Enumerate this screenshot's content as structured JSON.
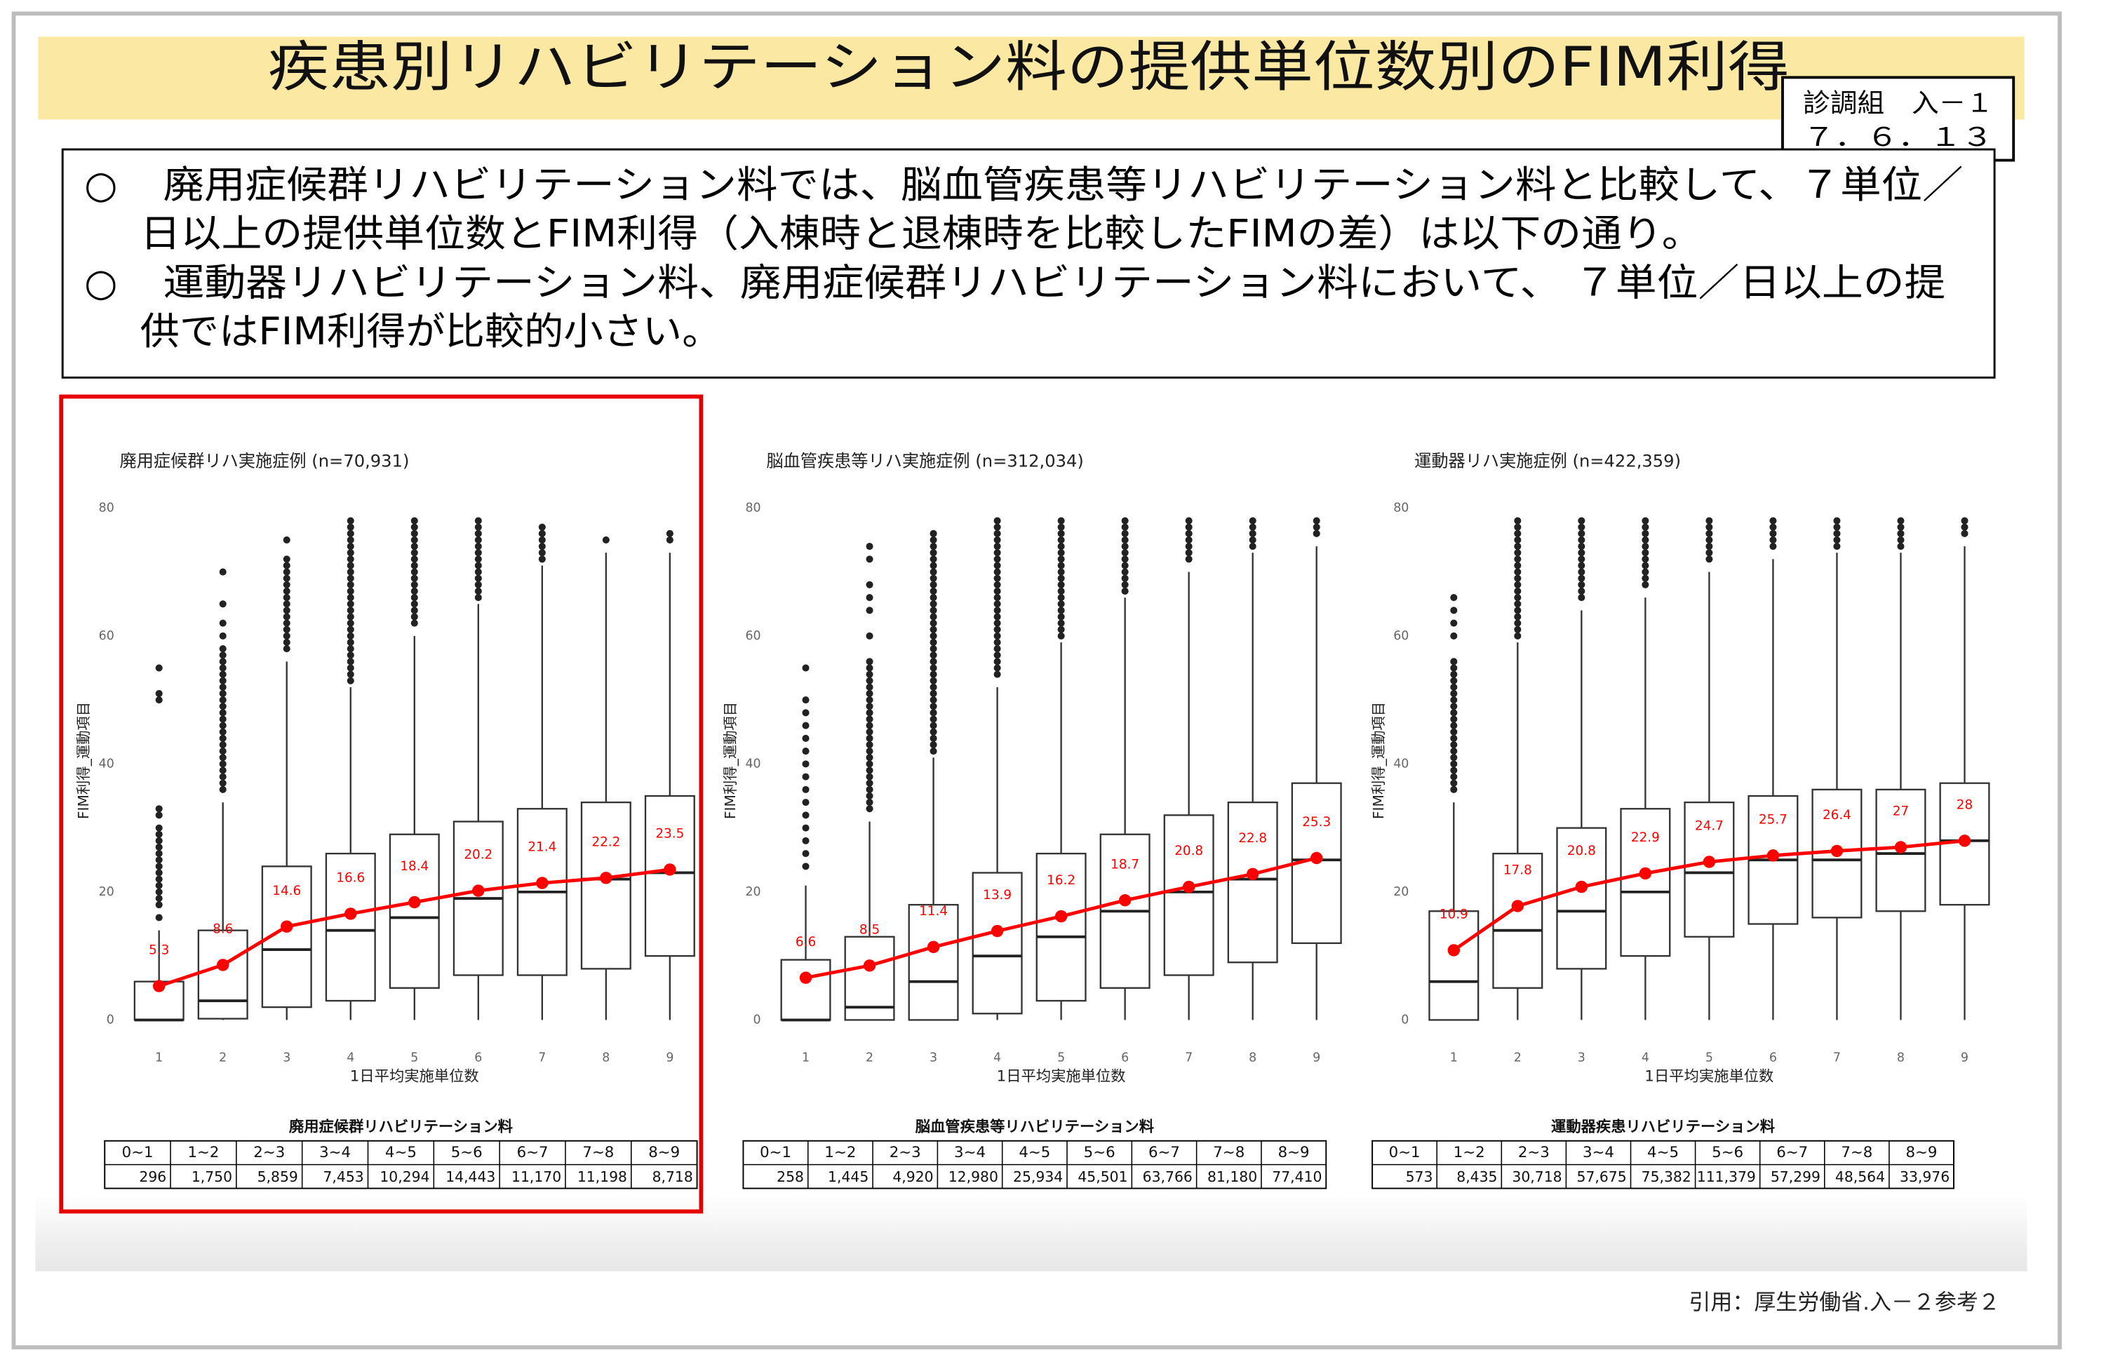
{
  "header": {
    "title": "疾患別リハビリテーション料の提供単位数別のFIM利得",
    "badge": [
      "診調組　入－１",
      "７．６．１３"
    ]
  },
  "bullets": [
    {
      "mark": "○",
      "lines": [
        "廃用症候群リハビリテーション料では、脳血管疾患等リハビリテーション料と比較して、７単位／",
        "日以上の提供単位数とFIM利得（入棟時と退棟時を比較したFIMの差）は以下の通り。"
      ]
    },
    {
      "mark": "○",
      "lines": [
        "運動器リハビリテーション料、廃用症候群リハビリテーション料において、 ７単位／日以上の提",
        "供ではFIM利得が比較的小さい。"
      ]
    }
  ],
  "chart_data": [
    {
      "type": "boxplot",
      "title": "廃用症候群リハ実施症例 (n=70,931)",
      "xlabel": "1日平均実施単位数",
      "ylabel": "FIM利得_運動項目",
      "categories": [
        "1",
        "2",
        "3",
        "4",
        "5",
        "6",
        "7",
        "8",
        "9"
      ],
      "ylim": [
        0,
        80
      ],
      "yticks": [
        0,
        20,
        40,
        60,
        80
      ],
      "box_color": "#333333",
      "mean_color": "#ff0000",
      "whisker_low": [
        0,
        0,
        0,
        0,
        0,
        0,
        0,
        0,
        0
      ],
      "q1": [
        0,
        0.2,
        2,
        3,
        5,
        7,
        7,
        8,
        10
      ],
      "median": [
        0,
        3,
        11,
        14,
        16,
        19,
        20,
        22,
        23
      ],
      "q3": [
        6,
        14,
        24,
        26,
        29,
        31,
        33,
        34,
        35
      ],
      "whisker_high": [
        14,
        34,
        56,
        52,
        60,
        65,
        71,
        73,
        73
      ],
      "outliers": [
        [
          16,
          18,
          19,
          20,
          21,
          22,
          23,
          24,
          25,
          26,
          27,
          28,
          29,
          30,
          32,
          33,
          50,
          51,
          55
        ],
        [
          36,
          37,
          38,
          39,
          40,
          41,
          42,
          43,
          44,
          45,
          46,
          47,
          48,
          49,
          50,
          51,
          52,
          53,
          54,
          55,
          56,
          57,
          58,
          60,
          62,
          65,
          70
        ],
        [
          58,
          59,
          60,
          61,
          62,
          63,
          64,
          65,
          66,
          67,
          68,
          69,
          70,
          71,
          72,
          75
        ],
        [
          53,
          54,
          55,
          56,
          57,
          58,
          59,
          60,
          61,
          62,
          63,
          64,
          65,
          66,
          67,
          68,
          69,
          70,
          71,
          72,
          73,
          74,
          75,
          76,
          77,
          78
        ],
        [
          62,
          63,
          64,
          65,
          66,
          67,
          68,
          69,
          70,
          71,
          72,
          73,
          74,
          75,
          76,
          77,
          78
        ],
        [
          66,
          67,
          68,
          69,
          70,
          71,
          72,
          73,
          74,
          75,
          76,
          77,
          78
        ],
        [
          72,
          73,
          74,
          75,
          76,
          77
        ],
        [
          75
        ],
        [
          75,
          76
        ]
      ],
      "means": [
        5.3,
        8.6,
        14.6,
        16.6,
        18.4,
        20.2,
        21.4,
        22.2,
        23.5
      ]
    },
    {
      "type": "boxplot",
      "title": "脳血管疾患等リハ実施症例 (n=312,034)",
      "xlabel": "1日平均実施単位数",
      "ylabel": "FIM利得_運動項目",
      "categories": [
        "1",
        "2",
        "3",
        "4",
        "5",
        "6",
        "7",
        "8",
        "9"
      ],
      "ylim": [
        0,
        80
      ],
      "yticks": [
        0,
        20,
        40,
        60,
        80
      ],
      "box_color": "#333333",
      "mean_color": "#ff0000",
      "whisker_low": [
        0,
        0,
        0,
        0,
        0,
        0,
        0,
        0,
        0
      ],
      "q1": [
        0,
        0,
        0,
        1,
        3,
        5,
        7,
        9,
        12
      ],
      "median": [
        0,
        2,
        6,
        10,
        13,
        17,
        20,
        22,
        25
      ],
      "q3": [
        9.4,
        13,
        18,
        23,
        26,
        29,
        32,
        34,
        37
      ],
      "whisker_high": [
        21,
        31,
        41,
        52,
        59,
        66,
        70,
        73,
        74
      ],
      "outliers": [
        [
          24,
          26,
          28,
          30,
          32,
          34,
          36,
          38,
          40,
          42,
          44,
          46,
          48,
          50,
          55
        ],
        [
          33,
          34,
          35,
          36,
          37,
          38,
          39,
          40,
          41,
          42,
          43,
          44,
          45,
          46,
          47,
          48,
          49,
          50,
          51,
          52,
          53,
          54,
          55,
          56,
          60,
          64,
          66,
          68,
          72,
          74
        ],
        [
          42,
          43,
          44,
          45,
          46,
          47,
          48,
          49,
          50,
          51,
          52,
          53,
          54,
          55,
          56,
          57,
          58,
          59,
          60,
          61,
          62,
          63,
          64,
          65,
          66,
          67,
          68,
          69,
          70,
          71,
          72,
          73,
          74,
          75,
          76
        ],
        [
          54,
          55,
          56,
          57,
          58,
          59,
          60,
          61,
          62,
          63,
          64,
          65,
          66,
          67,
          68,
          69,
          70,
          71,
          72,
          73,
          74,
          75,
          76,
          77,
          78
        ],
        [
          60,
          61,
          62,
          63,
          64,
          65,
          66,
          67,
          68,
          69,
          70,
          71,
          72,
          73,
          74,
          75,
          76,
          77,
          78
        ],
        [
          67,
          68,
          69,
          70,
          71,
          72,
          73,
          74,
          75,
          76,
          77,
          78
        ],
        [
          72,
          73,
          74,
          75,
          76,
          77,
          78
        ],
        [
          74,
          75,
          76,
          77,
          78
        ],
        [
          76,
          77,
          78
        ]
      ],
      "means": [
        6.6,
        8.5,
        11.4,
        13.9,
        16.2,
        18.7,
        20.8,
        22.8,
        25.3
      ]
    },
    {
      "type": "boxplot",
      "title": "運動器リハ実施症例 (n=422,359)",
      "xlabel": "1日平均実施単位数",
      "ylabel": "FIM利得_運動項目",
      "categories": [
        "1",
        "2",
        "3",
        "4",
        "5",
        "6",
        "7",
        "8",
        "9"
      ],
      "ylim": [
        0,
        80
      ],
      "yticks": [
        0,
        20,
        40,
        60,
        80
      ],
      "box_color": "#333333",
      "mean_color": "#ff0000",
      "whisker_low": [
        0,
        0,
        0,
        0,
        0,
        0,
        0,
        0,
        0
      ],
      "q1": [
        0,
        5,
        8,
        10,
        13,
        15,
        16,
        17,
        18
      ],
      "median": [
        6,
        14,
        17,
        20,
        23,
        25,
        25,
        26,
        28
      ],
      "q3": [
        17,
        26,
        30,
        33,
        34,
        35,
        36,
        36,
        37
      ],
      "whisker_high": [
        34,
        59,
        64,
        66,
        70,
        72,
        73,
        73,
        74
      ],
      "outliers": [
        [
          36,
          37,
          38,
          39,
          40,
          41,
          42,
          43,
          44,
          45,
          46,
          47,
          48,
          49,
          50,
          51,
          52,
          53,
          54,
          55,
          56,
          60,
          62,
          64,
          66
        ],
        [
          60,
          61,
          62,
          63,
          64,
          65,
          66,
          67,
          68,
          69,
          70,
          71,
          72,
          73,
          74,
          75,
          76,
          77,
          78
        ],
        [
          66,
          67,
          68,
          69,
          70,
          71,
          72,
          73,
          74,
          75,
          76,
          77,
          78
        ],
        [
          68,
          69,
          70,
          71,
          72,
          73,
          74,
          75,
          76,
          77,
          78
        ],
        [
          72,
          73,
          74,
          75,
          76,
          77,
          78
        ],
        [
          74,
          75,
          76,
          77,
          78
        ],
        [
          74,
          75,
          76,
          77,
          78
        ],
        [
          74,
          75,
          76,
          77,
          78
        ],
        [
          76,
          77,
          78
        ]
      ],
      "means": [
        10.9,
        17.8,
        20.8,
        22.9,
        24.7,
        25.7,
        26.4,
        27.0,
        28.0
      ]
    }
  ],
  "tables": [
    {
      "title": "廃用症候群リハビリテーション料",
      "header": [
        "0~1",
        "1~2",
        "2~3",
        "3~4",
        "4~5",
        "5~6",
        "6~7",
        "7~8",
        "8~9"
      ],
      "row": [
        "296",
        "1,750",
        "5,859",
        "7,453",
        "10,294",
        "14,443",
        "11,170",
        "11,198",
        "8,718"
      ]
    },
    {
      "title": "脳血管疾患等リハビリテーション料",
      "header": [
        "0~1",
        "1~2",
        "2~3",
        "3~4",
        "4~5",
        "5~6",
        "6~7",
        "7~8",
        "8~9"
      ],
      "row": [
        "258",
        "1,445",
        "4,920",
        "12,980",
        "25,934",
        "45,501",
        "63,766",
        "81,180",
        "77,410"
      ]
    },
    {
      "title": "運動器疾患リハビリテーション料",
      "header": [
        "0~1",
        "1~2",
        "2~3",
        "3~4",
        "4~5",
        "5~6",
        "6~7",
        "7~8",
        "8~9"
      ],
      "row": [
        "573",
        "8,435",
        "30,718",
        "57,675",
        "75,382",
        "111,379",
        "57,299",
        "48,564",
        "33,976"
      ]
    }
  ],
  "citation": "引用：厚生労働省.入－２参考２"
}
